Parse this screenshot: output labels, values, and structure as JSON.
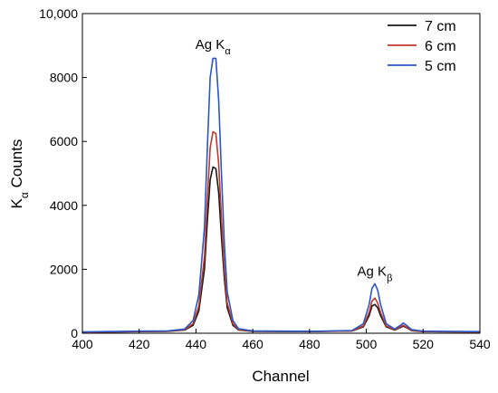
{
  "chart_data": {
    "type": "line",
    "title": "",
    "xlabel": "Channel",
    "ylabel_main": "K",
    "ylabel_sub": "α",
    "ylabel_rest": " Counts",
    "xlim": [
      400,
      540
    ],
    "ylim": [
      0,
      10000
    ],
    "x_ticks": [
      400,
      420,
      440,
      460,
      480,
      500,
      520,
      540
    ],
    "y_ticks": [
      0,
      2000,
      4000,
      6000,
      8000,
      10000
    ],
    "y_tick_labels": [
      "0",
      "2000",
      "4000",
      "6000",
      "8000",
      "10,000"
    ],
    "grid": false,
    "legend_position": "top-right",
    "annotations": [
      {
        "main": "Ag K",
        "sub": "α",
        "x": 446,
        "y": 8900
      },
      {
        "main": "Ag K",
        "sub": "β",
        "x": 503,
        "y": 1800
      }
    ],
    "series": [
      {
        "name": "7 cm",
        "color": "#1a1a1a",
        "x": [
          400,
          410,
          420,
          430,
          436,
          439,
          441,
          443,
          444,
          445,
          446,
          447,
          448,
          449,
          450,
          451,
          453,
          455,
          460,
          480,
          495,
          499,
          501,
          502,
          503,
          504,
          505,
          507,
          510,
          512,
          513,
          514,
          516,
          520,
          540
        ],
        "y": [
          30,
          40,
          50,
          60,
          100,
          250,
          700,
          2000,
          3500,
          4800,
          5200,
          5150,
          4400,
          3000,
          1700,
          800,
          250,
          100,
          60,
          50,
          70,
          200,
          550,
          850,
          900,
          800,
          550,
          200,
          100,
          180,
          220,
          180,
          80,
          50,
          40
        ]
      },
      {
        "name": "6 cm",
        "color": "#c0392b",
        "x": [
          400,
          410,
          420,
          430,
          436,
          439,
          441,
          443,
          444,
          445,
          446,
          447,
          448,
          449,
          450,
          451,
          453,
          455,
          460,
          480,
          495,
          499,
          501,
          502,
          503,
          504,
          505,
          507,
          510,
          512,
          513,
          514,
          516,
          520,
          540
        ],
        "y": [
          30,
          45,
          55,
          65,
          110,
          300,
          850,
          2400,
          4200,
          5800,
          6300,
          6250,
          5300,
          3600,
          2000,
          950,
          300,
          110,
          65,
          55,
          75,
          230,
          650,
          1000,
          1100,
          950,
          650,
          230,
          110,
          200,
          250,
          200,
          90,
          55,
          40
        ]
      },
      {
        "name": "5 cm",
        "color": "#2a56c6",
        "x": [
          400,
          410,
          420,
          430,
          436,
          439,
          441,
          443,
          444,
          445,
          446,
          447,
          448,
          449,
          450,
          451,
          453,
          455,
          460,
          480,
          495,
          499,
          501,
          502,
          503,
          504,
          505,
          507,
          510,
          512,
          513,
          514,
          516,
          520,
          540
        ],
        "y": [
          40,
          55,
          65,
          75,
          130,
          400,
          1200,
          3300,
          5800,
          8000,
          8600,
          8600,
          7300,
          5000,
          2800,
          1300,
          400,
          140,
          75,
          60,
          85,
          300,
          900,
          1400,
          1550,
          1350,
          900,
          300,
          130,
          250,
          320,
          260,
          110,
          65,
          50
        ]
      }
    ]
  }
}
